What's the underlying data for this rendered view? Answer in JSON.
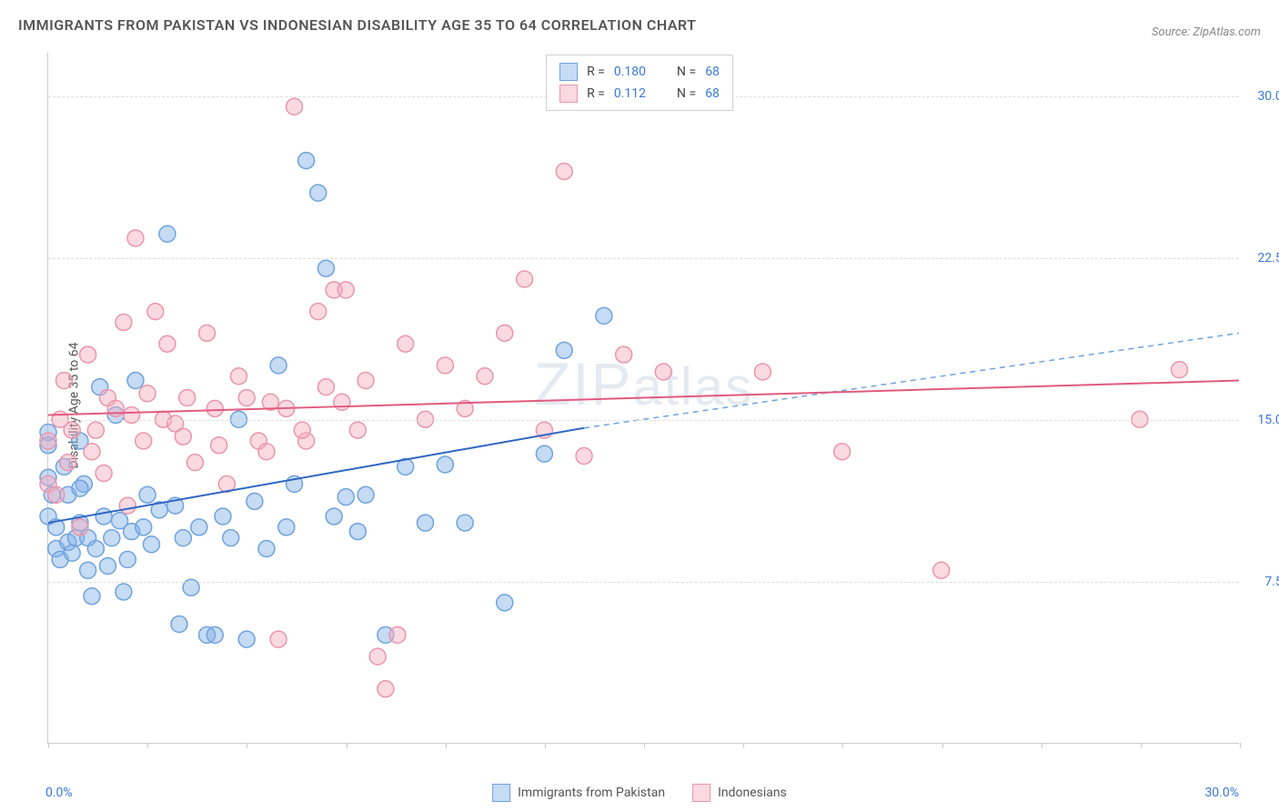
{
  "title": "IMMIGRANTS FROM PAKISTAN VS INDONESIAN DISABILITY AGE 35 TO 64 CORRELATION CHART",
  "source": "Source: ZipAtlas.com",
  "watermark": "ZIPatlas",
  "y_axis_title": "Disability Age 35 to 64",
  "chart": {
    "type": "scatter",
    "xlim": [
      0,
      30
    ],
    "ylim": [
      0,
      32
    ],
    "x_tick_positions": [
      0,
      2.5,
      5,
      7.5,
      10,
      12.5,
      15,
      17.5,
      20,
      22.5,
      25,
      27.5,
      30
    ],
    "y_ticks": [
      {
        "v": 7.5,
        "label": "7.5%"
      },
      {
        "v": 15.0,
        "label": "15.0%"
      },
      {
        "v": 22.5,
        "label": "22.5%"
      },
      {
        "v": 30.0,
        "label": "30.0%"
      }
    ],
    "x_label_min": "0.0%",
    "x_label_max": "30.0%",
    "background_color": "#ffffff",
    "grid_color": "#dddddd",
    "marker_radius": 9,
    "marker_stroke_width": 1.5,
    "trendline_width": 2,
    "series": [
      {
        "key": "pakistan",
        "label": "Immigrants from Pakistan",
        "color_fill": "rgba(129,175,230,0.45)",
        "color_stroke": "#6fa3dd",
        "trend_color": "#2e66c4",
        "trend_dash_color": "#6fa3dd",
        "trend_p1": [
          0,
          10.2
        ],
        "trend_p2": [
          13.5,
          14.6
        ],
        "trend_p3": [
          30,
          19.0
        ],
        "points": [
          [
            0.0,
            10.5
          ],
          [
            0.0,
            12.3
          ],
          [
            0.0,
            13.8
          ],
          [
            0.0,
            14.4
          ],
          [
            0.1,
            11.5
          ],
          [
            0.2,
            9.0
          ],
          [
            0.2,
            10.0
          ],
          [
            0.3,
            8.5
          ],
          [
            0.4,
            12.8
          ],
          [
            0.5,
            9.3
          ],
          [
            0.5,
            11.5
          ],
          [
            0.6,
            8.8
          ],
          [
            0.7,
            9.5
          ],
          [
            0.8,
            10.2
          ],
          [
            0.8,
            14.0
          ],
          [
            0.9,
            12.0
          ],
          [
            1.0,
            8.0
          ],
          [
            1.0,
            9.5
          ],
          [
            1.1,
            6.8
          ],
          [
            1.2,
            9.0
          ],
          [
            1.3,
            16.5
          ],
          [
            1.4,
            10.5
          ],
          [
            1.5,
            8.2
          ],
          [
            1.6,
            9.5
          ],
          [
            1.7,
            15.2
          ],
          [
            1.8,
            10.3
          ],
          [
            1.9,
            7.0
          ],
          [
            2.0,
            8.5
          ],
          [
            2.1,
            9.8
          ],
          [
            2.2,
            16.8
          ],
          [
            2.4,
            10.0
          ],
          [
            2.5,
            11.5
          ],
          [
            2.6,
            9.2
          ],
          [
            2.8,
            10.8
          ],
          [
            3.0,
            23.6
          ],
          [
            3.2,
            11.0
          ],
          [
            3.3,
            5.5
          ],
          [
            3.4,
            9.5
          ],
          [
            3.6,
            7.2
          ],
          [
            3.8,
            10.0
          ],
          [
            4.0,
            5.0
          ],
          [
            4.2,
            5.0
          ],
          [
            4.4,
            10.5
          ],
          [
            4.6,
            9.5
          ],
          [
            4.8,
            15.0
          ],
          [
            5.0,
            4.8
          ],
          [
            5.2,
            11.2
          ],
          [
            5.5,
            9.0
          ],
          [
            5.8,
            17.5
          ],
          [
            6.0,
            10.0
          ],
          [
            6.2,
            12.0
          ],
          [
            6.5,
            27.0
          ],
          [
            6.8,
            25.5
          ],
          [
            7.0,
            22.0
          ],
          [
            7.2,
            10.5
          ],
          [
            7.5,
            11.4
          ],
          [
            7.8,
            9.8
          ],
          [
            8.0,
            11.5
          ],
          [
            8.5,
            5.0
          ],
          [
            9.0,
            12.8
          ],
          [
            9.5,
            10.2
          ],
          [
            10.0,
            12.9
          ],
          [
            10.5,
            10.2
          ],
          [
            11.5,
            6.5
          ],
          [
            12.5,
            13.4
          ],
          [
            13.0,
            18.2
          ],
          [
            14.0,
            19.8
          ],
          [
            0.8,
            11.8
          ]
        ]
      },
      {
        "key": "indonesian",
        "label": "Indonesians",
        "color_fill": "rgba(244,170,190,0.45)",
        "color_stroke": "#e996ac",
        "trend_color": "#e15b7e",
        "trend_dash_color": "#e996ac",
        "trend_p1": [
          0,
          15.2
        ],
        "trend_p2": [
          30,
          16.8
        ],
        "trend_p3": [
          30,
          16.8
        ],
        "points": [
          [
            0.0,
            12.0
          ],
          [
            0.0,
            14.0
          ],
          [
            0.2,
            11.5
          ],
          [
            0.3,
            15.0
          ],
          [
            0.4,
            16.8
          ],
          [
            0.5,
            13.0
          ],
          [
            0.6,
            14.5
          ],
          [
            0.8,
            10.0
          ],
          [
            1.0,
            18.0
          ],
          [
            1.2,
            14.5
          ],
          [
            1.4,
            12.5
          ],
          [
            1.5,
            16.0
          ],
          [
            1.7,
            15.5
          ],
          [
            1.9,
            19.5
          ],
          [
            2.0,
            11.0
          ],
          [
            2.2,
            23.4
          ],
          [
            2.4,
            14.0
          ],
          [
            2.5,
            16.2
          ],
          [
            2.7,
            20.0
          ],
          [
            2.9,
            15.0
          ],
          [
            3.0,
            18.5
          ],
          [
            3.2,
            14.8
          ],
          [
            3.5,
            16.0
          ],
          [
            3.7,
            13.0
          ],
          [
            4.0,
            19.0
          ],
          [
            4.2,
            15.5
          ],
          [
            4.5,
            12.0
          ],
          [
            4.8,
            17.0
          ],
          [
            5.0,
            16.0
          ],
          [
            5.3,
            14.0
          ],
          [
            5.5,
            13.5
          ],
          [
            5.8,
            4.8
          ],
          [
            6.0,
            15.5
          ],
          [
            6.2,
            29.5
          ],
          [
            6.5,
            14.0
          ],
          [
            6.8,
            20.0
          ],
          [
            7.0,
            16.5
          ],
          [
            7.2,
            21.0
          ],
          [
            7.5,
            21.0
          ],
          [
            7.8,
            14.5
          ],
          [
            8.0,
            16.8
          ],
          [
            8.3,
            4.0
          ],
          [
            8.5,
            2.5
          ],
          [
            8.8,
            5.0
          ],
          [
            9.0,
            18.5
          ],
          [
            9.5,
            15.0
          ],
          [
            10.0,
            17.5
          ],
          [
            10.5,
            15.5
          ],
          [
            11.0,
            17.0
          ],
          [
            11.5,
            19.0
          ],
          [
            12.0,
            21.5
          ],
          [
            12.5,
            14.5
          ],
          [
            13.0,
            26.5
          ],
          [
            13.5,
            13.3
          ],
          [
            14.5,
            18.0
          ],
          [
            15.5,
            17.2
          ],
          [
            18.0,
            17.2
          ],
          [
            20.0,
            13.5
          ],
          [
            22.5,
            8.0
          ],
          [
            27.5,
            15.0
          ],
          [
            28.5,
            17.3
          ],
          [
            3.4,
            14.2
          ],
          [
            4.3,
            13.8
          ],
          [
            5.6,
            15.8
          ],
          [
            6.4,
            14.5
          ],
          [
            7.4,
            15.8
          ],
          [
            2.1,
            15.2
          ],
          [
            1.1,
            13.5
          ]
        ]
      }
    ]
  },
  "legend_top": {
    "rows": [
      {
        "swatch_fill": "rgba(129,175,230,0.45)",
        "swatch_stroke": "#6fa3dd",
        "r_label": "R =",
        "r_val": "0.180",
        "n_label": "N =",
        "n_val": "68"
      },
      {
        "swatch_fill": "rgba(244,170,190,0.45)",
        "swatch_stroke": "#e996ac",
        "r_label": "R =",
        "r_val": "0.112",
        "n_label": "N =",
        "n_val": "68"
      }
    ]
  },
  "legend_bottom": [
    {
      "swatch_fill": "rgba(129,175,230,0.45)",
      "swatch_stroke": "#6fa3dd",
      "label": "Immigrants from Pakistan"
    },
    {
      "swatch_fill": "rgba(244,170,190,0.45)",
      "swatch_stroke": "#e996ac",
      "label": "Indonesians"
    }
  ]
}
